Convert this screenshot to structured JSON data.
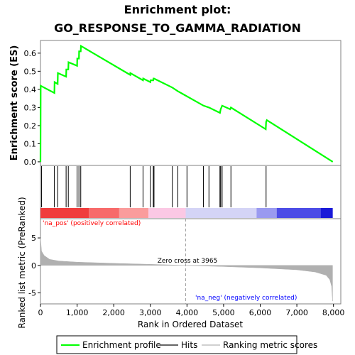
{
  "title": {
    "line1": "Enrichment plot:",
    "line2": "GO_RESPONSE_TO_GAMMA_RADIATION"
  },
  "colors": {
    "enrichment_line": "#00ff00",
    "hit_line": "#000000",
    "metric_fill": "#b0b0b0",
    "pos_label": "#ff0000",
    "neg_label": "#0000ff",
    "zero_line": "#a0a0a0"
  },
  "chart_data": [
    {
      "type": "line",
      "name": "enrichment_score",
      "ylabel": "Enrichment score (ES)",
      "xlim": [
        0,
        8200
      ],
      "ylim": [
        -0.02,
        0.67
      ],
      "yticks": [
        "0.0",
        "0.1",
        "0.2",
        "0.3",
        "0.4",
        "0.5",
        "0.6"
      ],
      "ytick_values": [
        0.0,
        0.1,
        0.2,
        0.3,
        0.4,
        0.5,
        0.6
      ],
      "grid": false,
      "points": [
        [
          0,
          0.0
        ],
        [
          5,
          0.42
        ],
        [
          380,
          0.38
        ],
        [
          385,
          0.44
        ],
        [
          470,
          0.43
        ],
        [
          475,
          0.49
        ],
        [
          700,
          0.47
        ],
        [
          705,
          0.51
        ],
        [
          760,
          0.51
        ],
        [
          765,
          0.55
        ],
        [
          1000,
          0.53
        ],
        [
          1005,
          0.57
        ],
        [
          1050,
          0.57
        ],
        [
          1055,
          0.61
        ],
        [
          1100,
          0.61
        ],
        [
          1105,
          0.64
        ],
        [
          2450,
          0.48
        ],
        [
          2455,
          0.49
        ],
        [
          2800,
          0.45
        ],
        [
          2805,
          0.46
        ],
        [
          3000,
          0.44
        ],
        [
          3005,
          0.45
        ],
        [
          3080,
          0.45
        ],
        [
          3085,
          0.46
        ],
        [
          3100,
          0.46
        ],
        [
          3600,
          0.41
        ],
        [
          3750,
          0.39
        ],
        [
          4450,
          0.31
        ],
        [
          4600,
          0.3
        ],
        [
          4900,
          0.27
        ],
        [
          4920,
          0.29
        ],
        [
          4960,
          0.31
        ],
        [
          5180,
          0.29
        ],
        [
          5200,
          0.3
        ],
        [
          6150,
          0.18
        ],
        [
          6160,
          0.22
        ],
        [
          6180,
          0.23
        ],
        [
          7980,
          0.0
        ]
      ]
    },
    {
      "type": "line",
      "name": "hits",
      "x": [
        30,
        380,
        470,
        700,
        760,
        1000,
        1050,
        1100,
        2450,
        2800,
        3000,
        3080,
        3100,
        3600,
        3750,
        4000,
        4450,
        4600,
        4900,
        4920,
        4960,
        5200,
        6160
      ]
    },
    {
      "type": "area",
      "name": "ranked_list_metric",
      "ylabel": "Ranked list metric (PreRanked)",
      "xlabel": "Rank in Ordered Dataset",
      "xlim": [
        0,
        8200
      ],
      "ylim": [
        -7,
        8.5
      ],
      "xticks": [
        "0",
        "1,000",
        "2,000",
        "3,000",
        "4,000",
        "5,000",
        "6,000",
        "7,000",
        "8,000"
      ],
      "xtick_values": [
        0,
        1000,
        2000,
        3000,
        4000,
        5000,
        6000,
        7000,
        8000
      ],
      "yticks": [
        "-5",
        "0",
        "5"
      ],
      "ytick_values": [
        -5,
        0,
        5
      ],
      "points": [
        [
          0,
          5.0
        ],
        [
          30,
          2.6
        ],
        [
          100,
          1.8
        ],
        [
          250,
          1.1
        ],
        [
          500,
          0.8
        ],
        [
          1000,
          0.6
        ],
        [
          2000,
          0.38
        ],
        [
          3000,
          0.2
        ],
        [
          3965,
          0.0
        ],
        [
          5000,
          -0.2
        ],
        [
          6000,
          -0.45
        ],
        [
          7000,
          -0.8
        ],
        [
          7500,
          -1.2
        ],
        [
          7800,
          -1.8
        ],
        [
          7900,
          -2.6
        ],
        [
          7950,
          -3.8
        ],
        [
          7975,
          -6.5
        ]
      ],
      "annotations": {
        "zero_cross": "Zero cross at 3965",
        "pos": "'na_pos' (positively correlated)",
        "neg": "'na_neg' (negatively correlated)"
      }
    }
  ],
  "color_bar": {
    "segments": [
      {
        "start": 0,
        "end": 1320,
        "color": "#f03c3c"
      },
      {
        "start": 1320,
        "end": 2150,
        "color": "#f76a6a"
      },
      {
        "start": 2150,
        "end": 2950,
        "color": "#fa9c9c"
      },
      {
        "start": 2950,
        "end": 3965,
        "color": "#fbc8e4"
      },
      {
        "start": 3965,
        "end": 5900,
        "color": "#d4d4f6"
      },
      {
        "start": 5900,
        "end": 6450,
        "color": "#9a9af0"
      },
      {
        "start": 6450,
        "end": 7650,
        "color": "#4c4ce6"
      },
      {
        "start": 7650,
        "end": 7980,
        "color": "#1a1ad8"
      }
    ]
  },
  "legend": {
    "items": [
      {
        "label": "Enrichment profile",
        "color": "#00ff00"
      },
      {
        "label": "Hits",
        "color": "#666666"
      },
      {
        "label": "Ranking metric scores",
        "color": "#d0d0d0"
      }
    ]
  }
}
